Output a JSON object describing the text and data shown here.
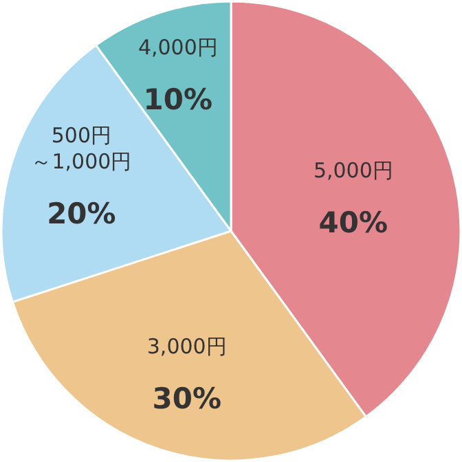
{
  "chart_data": {
    "type": "pie",
    "categories": [
      "5,000円",
      "3,000円",
      "500円～1,000円",
      "4,000円"
    ],
    "values": [
      40,
      30,
      20,
      10
    ],
    "value_labels": [
      "40%",
      "30%",
      "20%",
      "10%"
    ],
    "colors": [
      "#e5878f",
      "#efc58e",
      "#afdcf2",
      "#72c3c7"
    ]
  }
}
